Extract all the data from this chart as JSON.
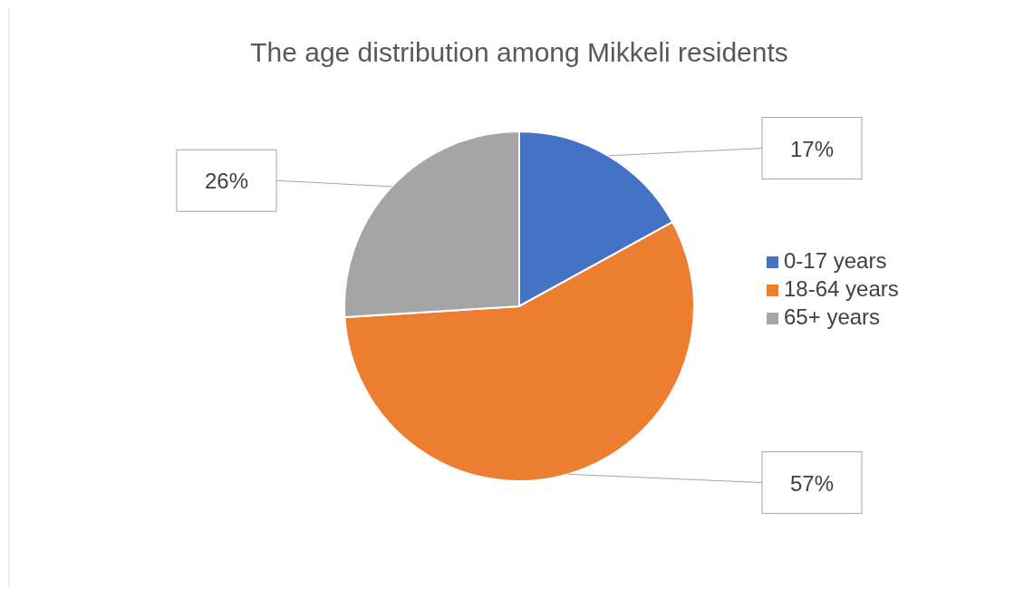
{
  "chart_data": {
    "type": "pie",
    "title": "The age distribution among Mikkeli residents",
    "categories": [
      "0-17 years",
      "18-64 years",
      "65+ years"
    ],
    "values": [
      17,
      57,
      26
    ],
    "colors": [
      "#4472c4",
      "#ed7d31",
      "#a5a5a5"
    ],
    "value_labels": [
      "17%",
      "57%",
      "26%"
    ],
    "legend": "right"
  }
}
